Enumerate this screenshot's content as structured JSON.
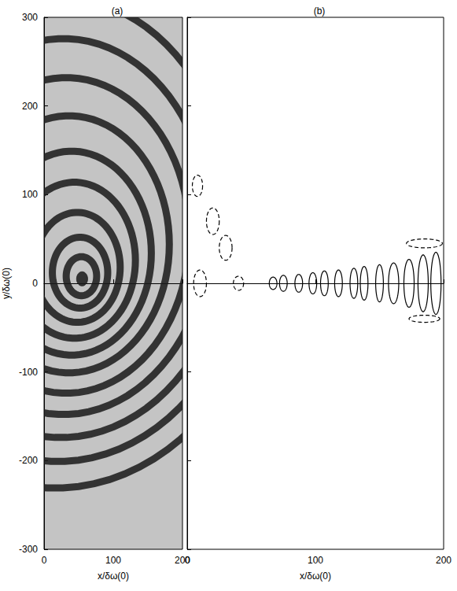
{
  "chart_data": [
    {
      "type": "rings",
      "title": "(a)",
      "x_label": "x/δω(0)",
      "y_label": "y/δω(0)",
      "xlim": [
        0,
        200
      ],
      "ylim": [
        -300,
        300
      ],
      "xticks": [
        0,
        100,
        200
      ],
      "yticks": [
        -300,
        -200,
        -100,
        0,
        100,
        200,
        300
      ],
      "color": "#1a1a1a",
      "rings": [
        {
          "x": 55,
          "y": 5,
          "radius": 8,
          "marker": "disc"
        },
        {
          "x": 54,
          "y": 8,
          "radius": 22,
          "marker": "ring"
        },
        {
          "x": 52,
          "y": 12,
          "radius": 40,
          "marker": "ring"
        },
        {
          "x": 48,
          "y": 18,
          "radius": 62,
          "marker": "ring"
        },
        {
          "x": 44,
          "y": 26,
          "radius": 88,
          "marker": "ring"
        },
        {
          "x": 40,
          "y": 34,
          "radius": 115,
          "marker": "ring"
        },
        {
          "x": 36,
          "y": 44,
          "radius": 145,
          "marker": "ring"
        },
        {
          "x": 32,
          "y": 54,
          "radius": 178,
          "marker": "ring"
        },
        {
          "x": 28,
          "y": 64,
          "radius": 212,
          "marker": "ring"
        },
        {
          "x": 24,
          "y": 74,
          "radius": 248,
          "marker": "ring"
        },
        {
          "x": 20,
          "y": 84,
          "radius": 285,
          "marker": "ring"
        },
        {
          "x": 16,
          "y": 94,
          "radius": 325,
          "marker": "ring"
        }
      ]
    },
    {
      "type": "contour",
      "title": "(b)",
      "x_label": "x/δω(0)",
      "xlim": [
        0,
        200
      ],
      "ylim": [
        -300,
        300
      ],
      "xticks": [
        0,
        100,
        200
      ],
      "yticks": [
        -300,
        -200,
        -100,
        0,
        100,
        200,
        300
      ],
      "tick_labels": "x",
      "color": "#000000",
      "contours": [
        {
          "x": 67,
          "y": 0,
          "half_width": 3,
          "half_height": 7,
          "line_style": "solid"
        },
        {
          "x": 75,
          "y": 0,
          "half_width": 3,
          "half_height": 9,
          "line_style": "solid"
        },
        {
          "x": 87,
          "y": 0,
          "half_width": 3,
          "half_height": 10,
          "line_style": "solid"
        },
        {
          "x": 98,
          "y": 0,
          "half_width": 3,
          "half_height": 12,
          "line_style": "solid"
        },
        {
          "x": 107,
          "y": 0,
          "half_width": 3,
          "half_height": 14,
          "line_style": "solid"
        },
        {
          "x": 118,
          "y": 0,
          "half_width": 3,
          "half_height": 15,
          "line_style": "solid"
        },
        {
          "x": 130,
          "y": 0,
          "half_width": 3,
          "half_height": 17,
          "line_style": "solid"
        },
        {
          "x": 138,
          "y": 0,
          "half_width": 3,
          "half_height": 19,
          "line_style": "solid"
        },
        {
          "x": 150,
          "y": 0,
          "half_width": 3,
          "half_height": 21,
          "line_style": "solid"
        },
        {
          "x": 161,
          "y": 0,
          "half_width": 4,
          "half_height": 23,
          "line_style": "solid"
        },
        {
          "x": 173,
          "y": 0,
          "half_width": 4,
          "half_height": 27,
          "line_style": "solid"
        },
        {
          "x": 184,
          "y": 0,
          "half_width": 4,
          "half_height": 32,
          "line_style": "solid"
        },
        {
          "x": 194,
          "y": 0,
          "half_width": 4,
          "half_height": 35,
          "line_style": "solid"
        },
        {
          "x": 8,
          "y": 110,
          "half_width": 4,
          "half_height": 12,
          "line_style": "dashed"
        },
        {
          "x": 20,
          "y": 70,
          "half_width": 5,
          "half_height": 15,
          "line_style": "dashed"
        },
        {
          "x": 30,
          "y": 40,
          "half_width": 5,
          "half_height": 14,
          "line_style": "dashed"
        },
        {
          "x": 10,
          "y": 0,
          "half_width": 5,
          "half_height": 15,
          "line_style": "dashed"
        },
        {
          "x": 40,
          "y": 0,
          "half_width": 4,
          "half_height": 8,
          "line_style": "dashed"
        },
        {
          "x": 185,
          "y": 45,
          "half_width": 14,
          "half_height": 5,
          "line_style": "dashed"
        },
        {
          "x": 185,
          "y": -40,
          "half_width": 12,
          "half_height": 4,
          "line_style": "dashed"
        }
      ]
    }
  ]
}
